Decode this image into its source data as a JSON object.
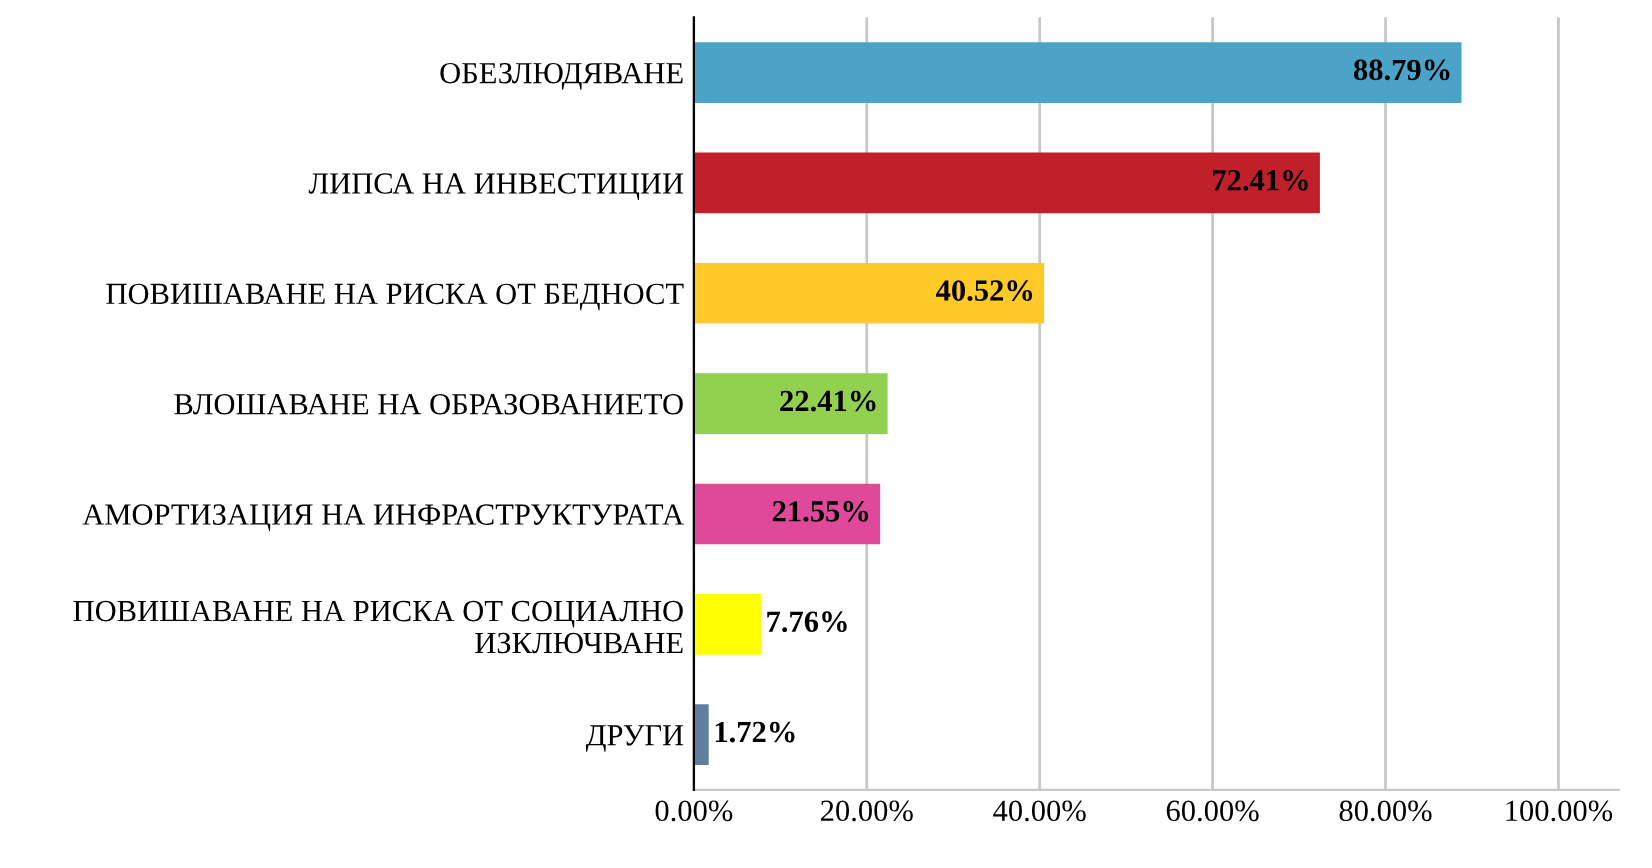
{
  "chart_data": {
    "type": "bar",
    "orientation": "horizontal",
    "categories": [
      "ОБЕЗЛЮДЯВАНЕ",
      "ЛИПСА НА ИНВЕСТИЦИИ",
      "ПОВИШАВАНЕ НА РИСКА ОТ БЕДНОСТ",
      "ВЛОШАВАНЕ НА ОБРАЗОВАНИЕТО",
      "АМОРТИЗАЦИЯ НА ИНФРАСТРУКТУРАТА",
      "ПОВИШАВАНЕ НА РИСКА ОТ СОЦИАЛНО\nИЗКЛЮЧВАНЕ",
      "ДРУГИ"
    ],
    "values": [
      88.79,
      72.41,
      40.52,
      22.41,
      21.55,
      7.76,
      1.72
    ],
    "colors": [
      "#4ba3c7",
      "#c0202a",
      "#ffc928",
      "#92d050",
      "#e0489a",
      "#ffff00",
      "#5f7fa0"
    ],
    "value_labels": [
      "88.79%",
      "72.41%",
      "40.52%",
      "22.41%",
      "21.55%",
      "7.76%",
      "1.72%"
    ],
    "xlim": [
      0,
      107
    ],
    "xticks": [
      {
        "value": 0,
        "label": "0.00%"
      },
      {
        "value": 20,
        "label": "20.00%"
      },
      {
        "value": 40,
        "label": "40.00%"
      },
      {
        "value": 60,
        "label": "60.00%"
      },
      {
        "value": 80,
        "label": "80.00%"
      },
      {
        "value": 100,
        "label": "100.00%"
      }
    ],
    "grid": "x"
  }
}
